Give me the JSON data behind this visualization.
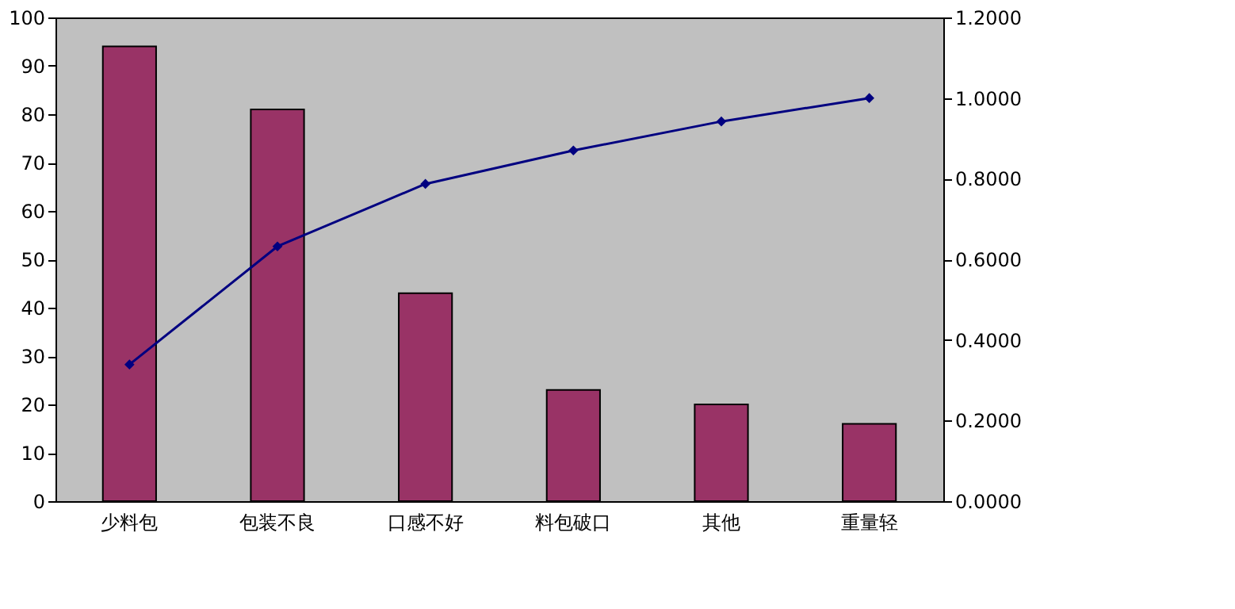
{
  "chart_data": {
    "type": "bar",
    "categories": [
      "少料包",
      "包装不良",
      "口感不好",
      "料包破口",
      "其他",
      "重量轻"
    ],
    "series": [
      {
        "color": "#993366",
        "values": [
          94,
          81,
          43,
          23,
          20,
          16
        ]
      },
      {
        "type": "line",
        "axis": "y2",
        "color": "#000080",
        "marker": "diamond",
        "values": [
          0.339,
          0.632,
          0.787,
          0.87,
          0.942,
          1.0
        ]
      }
    ],
    "ylim": [
      0,
      100
    ],
    "yticks": [
      0,
      10,
      20,
      30,
      40,
      50,
      60,
      70,
      80,
      90,
      100
    ],
    "y2lim": [
      0,
      1.2
    ],
    "y2ticks": [
      {
        "value": 0,
        "label": "0.0000"
      },
      {
        "value": 0.2,
        "label": "0.2000"
      },
      {
        "value": 0.4,
        "label": "0.4000"
      },
      {
        "value": 0.6,
        "label": "0.6000"
      },
      {
        "value": 0.8,
        "label": "0.8000"
      },
      {
        "value": 1.0,
        "label": "1.0000"
      },
      {
        "value": 1.2,
        "label": "1.2000"
      }
    ],
    "grid": false
  }
}
